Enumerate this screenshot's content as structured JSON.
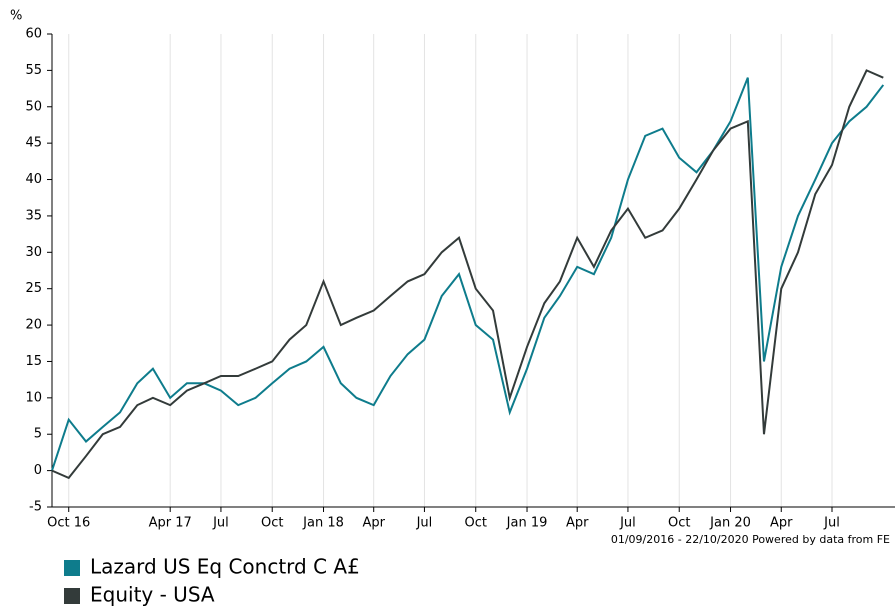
{
  "chart_data": {
    "type": "line",
    "y_label": "%",
    "footnote": "01/09/2016 - 22/10/2020 Powered by data from FE",
    "x": [
      "2016-09",
      "2016-10",
      "2016-11",
      "2016-12",
      "2017-01",
      "2017-02",
      "2017-03",
      "2017-04",
      "2017-05",
      "2017-06",
      "2017-07",
      "2017-08",
      "2017-09",
      "2017-10",
      "2017-11",
      "2017-12",
      "2018-01",
      "2018-02",
      "2018-03",
      "2018-04",
      "2018-05",
      "2018-06",
      "2018-07",
      "2018-08",
      "2018-09",
      "2018-10",
      "2018-11",
      "2018-12",
      "2019-01",
      "2019-02",
      "2019-03",
      "2019-04",
      "2019-05",
      "2019-06",
      "2019-07",
      "2019-08",
      "2019-09",
      "2019-10",
      "2019-11",
      "2019-12",
      "2020-01",
      "2020-02",
      "2020-03",
      "2020-04",
      "2020-05",
      "2020-06",
      "2020-07",
      "2020-08",
      "2020-09",
      "2020-10"
    ],
    "series": [
      {
        "name": "Lazard US Eq Conctrd C A£",
        "color": "#0e7c8c",
        "values": [
          0,
          7,
          4,
          6,
          8,
          12,
          14,
          10,
          12,
          12,
          11,
          9,
          10,
          12,
          14,
          15,
          17,
          12,
          10,
          9,
          13,
          16,
          18,
          24,
          27,
          20,
          18,
          8,
          14,
          21,
          24,
          28,
          27,
          32,
          40,
          46,
          47,
          43,
          41,
          44,
          48,
          54,
          15,
          28,
          35,
          40,
          45,
          48,
          50,
          53
        ]
      },
      {
        "name": "Equity - USA",
        "color": "#333b3a",
        "values": [
          0,
          -1,
          2,
          5,
          6,
          9,
          10,
          9,
          11,
          12,
          13,
          13,
          14,
          15,
          18,
          20,
          26,
          20,
          21,
          22,
          24,
          26,
          27,
          30,
          32,
          25,
          22,
          10,
          17,
          23,
          26,
          32,
          28,
          33,
          36,
          32,
          33,
          36,
          40,
          44,
          47,
          48,
          5,
          25,
          30,
          38,
          42,
          50,
          55,
          54
        ]
      }
    ],
    "xlim": [
      "2016-09-01",
      "2020-10-22"
    ],
    "xticks": [
      {
        "value": "2016-10",
        "label": "Oct 16"
      },
      {
        "value": "2017-04",
        "label": "Apr 17"
      },
      {
        "value": "2017-07",
        "label": "Jul"
      },
      {
        "value": "2017-10",
        "label": "Oct"
      },
      {
        "value": "2018-01",
        "label": "Jan 18"
      },
      {
        "value": "2018-04",
        "label": "Apr"
      },
      {
        "value": "2018-07",
        "label": "Jul"
      },
      {
        "value": "2018-10",
        "label": "Oct"
      },
      {
        "value": "2019-01",
        "label": "Jan 19"
      },
      {
        "value": "2019-04",
        "label": "Apr"
      },
      {
        "value": "2019-07",
        "label": "Jul"
      },
      {
        "value": "2019-10",
        "label": "Oct"
      },
      {
        "value": "2020-01",
        "label": "Jan 20"
      },
      {
        "value": "2020-04",
        "label": "Apr"
      },
      {
        "value": "2020-07",
        "label": "Jul"
      }
    ],
    "ylim": [
      -5,
      60
    ],
    "yticks": [
      -5,
      0,
      5,
      10,
      15,
      20,
      25,
      30,
      35,
      40,
      45,
      50,
      55,
      60
    ],
    "grid": "x"
  }
}
